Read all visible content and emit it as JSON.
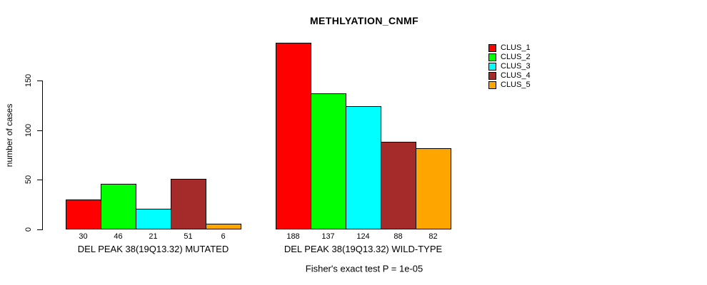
{
  "title": "METHLYATION_CNMF",
  "ylabel": "number of cases",
  "annotation": "Fisher's exact test P = 1e-05",
  "chart_data": {
    "type": "bar",
    "title": "METHLYATION_CNMF",
    "xlabel": "",
    "ylabel": "number of cases",
    "ylim": [
      0,
      150
    ],
    "yticks": [
      0,
      50,
      100,
      150
    ],
    "grid": false,
    "annotation": "Fisher's exact test P = 1e-05",
    "groups": [
      {
        "label": "DEL PEAK 38(19Q13.32) MUTATED",
        "values": [
          30,
          46,
          21,
          51,
          6
        ]
      },
      {
        "label": "DEL PEAK 38(19Q13.32) WILD-TYPE",
        "values": [
          188,
          137,
          124,
          88,
          82
        ]
      }
    ],
    "series_colors": [
      "#ff0000",
      "#00ff00",
      "#00ffff",
      "#a52a2a",
      "#ffa500"
    ],
    "legend": {
      "position": "right",
      "entries": [
        {
          "label": "CLUS_1",
          "color": "#ff0000"
        },
        {
          "label": "CLUS_2",
          "color": "#00ff00"
        },
        {
          "label": "CLUS_3",
          "color": "#00ffff"
        },
        {
          "label": "CLUS_4",
          "color": "#a52a2a"
        },
        {
          "label": "CLUS_5",
          "color": "#ffa500"
        }
      ]
    },
    "bar_value_labels_shown": true
  }
}
